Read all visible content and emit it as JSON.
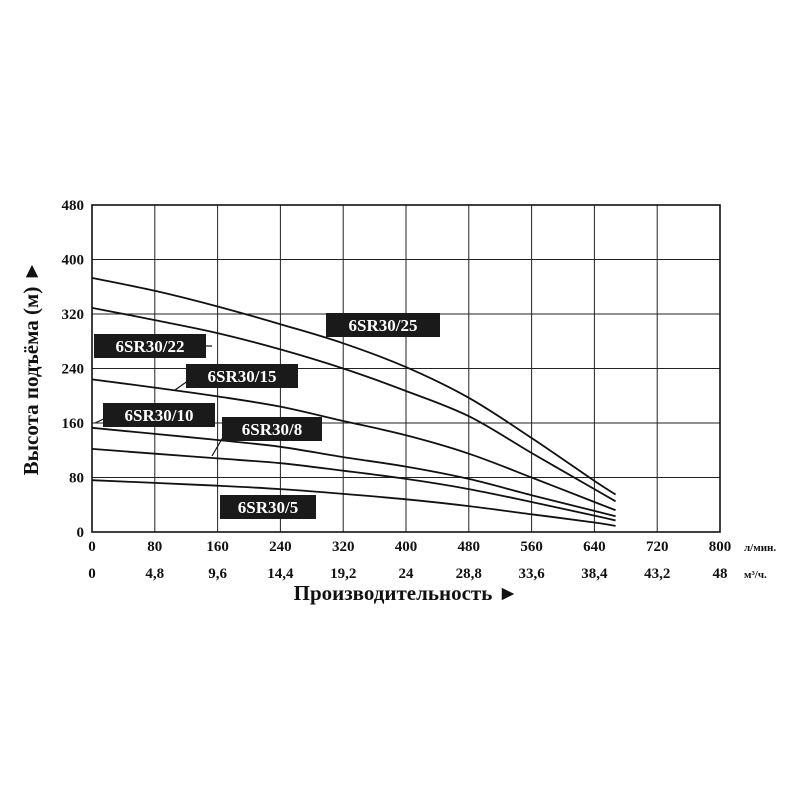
{
  "chart_data": {
    "type": "line",
    "title": "",
    "ylabel": "Высота подъёма (м) ►",
    "xlabel": "Производительность ►",
    "ylim": [
      0,
      480
    ],
    "xlim": [
      0,
      800
    ],
    "grid": true,
    "y_ticks": [
      "0",
      "80",
      "160",
      "240",
      "320",
      "400",
      "480"
    ],
    "x_ticks_primary": [
      "0",
      "80",
      "160",
      "240",
      "320",
      "400",
      "480",
      "560",
      "640",
      "720",
      "800"
    ],
    "x_ticks_secondary": [
      "0",
      "4,8",
      "9,6",
      "14,4",
      "19,2",
      "24",
      "28,8",
      "33,6",
      "38,4",
      "43,2",
      "48"
    ],
    "x_unit_primary": "л/мин.",
    "x_unit_secondary": "м³/ч.",
    "series": [
      {
        "name": "6SR30/25",
        "x": [
          0,
          80,
          160,
          240,
          320,
          400,
          480,
          560,
          640,
          667
        ],
        "y": [
          373,
          354,
          331,
          305,
          277,
          242,
          197,
          138,
          75,
          55
        ]
      },
      {
        "name": "6SR30/22",
        "x": [
          0,
          80,
          160,
          240,
          320,
          400,
          480,
          560,
          640,
          667
        ],
        "y": [
          329,
          311,
          292,
          268,
          240,
          207,
          170,
          116,
          63,
          45
        ]
      },
      {
        "name": "6SR30/15",
        "x": [
          0,
          80,
          160,
          240,
          320,
          400,
          480,
          560,
          640,
          667
        ],
        "y": [
          224,
          212,
          199,
          184,
          163,
          142,
          115,
          80,
          44,
          32
        ]
      },
      {
        "name": "6SR30/10",
        "x": [
          0,
          80,
          160,
          240,
          320,
          400,
          480,
          560,
          640,
          667
        ],
        "y": [
          153,
          144,
          135,
          125,
          110,
          96,
          78,
          54,
          31,
          23
        ]
      },
      {
        "name": "6SR30/8",
        "x": [
          0,
          80,
          160,
          240,
          320,
          400,
          480,
          560,
          640,
          667
        ],
        "y": [
          122,
          115,
          108,
          101,
          90,
          78,
          63,
          44,
          24,
          17
        ]
      },
      {
        "name": "6SR30/5",
        "x": [
          0,
          80,
          160,
          240,
          320,
          400,
          480,
          560,
          640,
          667
        ],
        "y": [
          76,
          72,
          68,
          63,
          56,
          48,
          38,
          26,
          14,
          9
        ]
      }
    ]
  }
}
